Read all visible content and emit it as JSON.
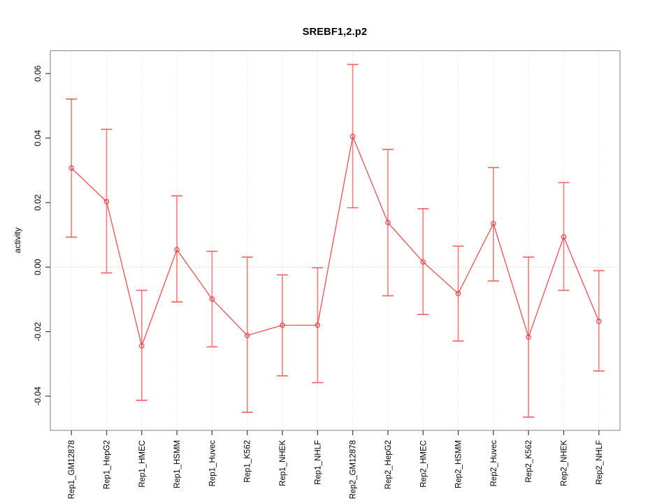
{
  "chart_data": {
    "type": "line",
    "subtype": "line-with-error-bars",
    "title": "SREBF1,2.p2",
    "xlabel": "",
    "ylabel": "activity",
    "categories": [
      "Rep1_GM12878",
      "Rep1_HepG2",
      "Rep1_HMEC",
      "Rep1_HSMM",
      "Rep1_Huvec",
      "Rep1_K562",
      "Rep1_NHEK",
      "Rep1_NHLF",
      "Rep2_GM12878",
      "Rep2_HepG2",
      "Rep2_HMEC",
      "Rep2_HSMM",
      "Rep2_Huvec",
      "Rep2_K562",
      "Rep2_NHEK",
      "Rep2_NHLF"
    ],
    "series": [
      {
        "name": "activity",
        "values": [
          0.0307,
          0.0203,
          -0.0244,
          0.0054,
          -0.0099,
          -0.0212,
          -0.018,
          -0.018,
          0.0405,
          0.0138,
          0.0016,
          -0.0082,
          0.0135,
          -0.0217,
          0.0094,
          -0.0168
        ],
        "err_low": [
          0.0093,
          -0.0018,
          -0.0413,
          -0.0108,
          -0.0247,
          -0.045,
          -0.0337,
          -0.0358,
          0.0184,
          -0.0089,
          -0.0147,
          -0.0229,
          -0.0043,
          -0.0465,
          -0.0072,
          -0.0322
        ],
        "err_high": [
          0.0521,
          0.0427,
          -0.0072,
          0.0221,
          0.0049,
          0.0031,
          -0.0024,
          -0.0002,
          0.0628,
          0.0365,
          0.0181,
          0.0065,
          0.0309,
          0.0031,
          0.0262,
          -0.0011
        ]
      }
    ],
    "ylim": [
      -0.0506,
      0.0671
    ],
    "ytick_labels": [
      "0.06",
      "0.04",
      "0.02",
      "0.00",
      "-0.02",
      "-0.04"
    ],
    "ytick_values": [
      0.06,
      0.04,
      0.02,
      0.0,
      -0.02,
      -0.04
    ],
    "grid": "dotted vertical gridline per category, dotted horizontal line at zero",
    "zero_line": true,
    "legend": "none",
    "marker": "open-circle",
    "colors": {
      "line": "#ee4f4f",
      "marker": "#ea4646",
      "error_bar": "#f58282",
      "error_cap": "#f26060",
      "grid": "#dadada",
      "zero_line": "#cccccc",
      "box_border": "#949494",
      "tick": "#3c3c3c",
      "text": "#000000"
    }
  }
}
